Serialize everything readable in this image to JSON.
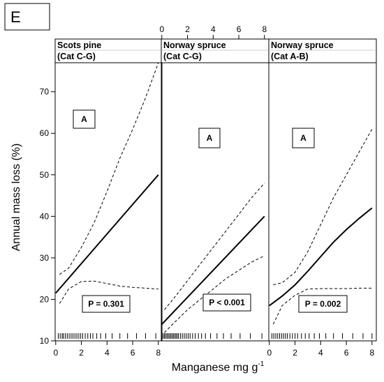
{
  "panel_letter": "E",
  "chart_data": {
    "type": "line",
    "layout": "three panels side by side sharing the y axis",
    "xlabel": "Manganese mg g",
    "xlabel_superscript": "-1",
    "ylabel": "Annual mass loss (%)",
    "xlim": [
      0,
      8
    ],
    "ylim": [
      10,
      77
    ],
    "xticks": [
      0,
      2,
      4,
      6,
      8
    ],
    "yticks": [
      10,
      20,
      30,
      40,
      50,
      60,
      70
    ],
    "grid": false,
    "bottom_axis_ticks_panels": [
      0,
      2
    ],
    "top_axis_ticks_panels": [
      1
    ],
    "panels": [
      {
        "strip_line1": "Scots pine",
        "strip_line2": "(Cat C-G)",
        "group_label": "A",
        "p_text": "P = 0.301",
        "fit": {
          "x": [
            0,
            8
          ],
          "y": [
            21.5,
            50
          ]
        },
        "upper_ci": {
          "x": [
            0.3,
            1,
            2,
            3,
            4,
            5,
            6,
            7,
            8
          ],
          "y": [
            26,
            27.5,
            32.5,
            38.5,
            46,
            54,
            61,
            68.5,
            77
          ]
        },
        "lower_ci": {
          "x": [
            0.3,
            1,
            2,
            3,
            4,
            5,
            6,
            7,
            8
          ],
          "y": [
            19,
            22.5,
            24.3,
            24.4,
            23.8,
            23.2,
            22.9,
            22.7,
            22.5
          ]
        },
        "rug": [
          0.2,
          0.35,
          0.5,
          0.6,
          0.75,
          0.9,
          1.05,
          1.2,
          1.35,
          1.5,
          1.65,
          1.8,
          1.95,
          2.1,
          2.3,
          2.5,
          2.7,
          2.9,
          3.2,
          3.5,
          3.9,
          4.4,
          5.0,
          5.6,
          6.3,
          7.0,
          7.8
        ]
      },
      {
        "strip_line1": "Norway spruce",
        "strip_line2": "(Cat C-G)",
        "group_label": "A",
        "p_text": "P < 0.001",
        "fit": {
          "x": [
            0,
            8
          ],
          "y": [
            14,
            40
          ]
        },
        "upper_ci": {
          "x": [
            0.2,
            1,
            2,
            3,
            4,
            5,
            6,
            7,
            8
          ],
          "y": [
            17.5,
            20.5,
            24.5,
            28.5,
            32.5,
            36.5,
            40.5,
            44.5,
            48
          ]
        },
        "lower_ci": {
          "x": [
            0.2,
            1,
            2,
            3,
            4,
            5,
            6,
            7,
            8
          ],
          "y": [
            12,
            14.5,
            17.5,
            20,
            22.5,
            25,
            27,
            29,
            30.5
          ]
        },
        "rug": [
          0.1,
          0.2,
          0.3,
          0.4,
          0.5,
          0.6,
          0.7,
          0.8,
          0.9,
          1.0,
          1.1,
          1.2,
          1.3,
          1.45,
          1.6,
          1.75,
          1.9,
          2.05,
          2.2,
          2.4,
          2.6,
          2.85,
          3.1,
          3.4,
          3.8,
          4.3,
          4.8,
          5.4,
          6.1,
          6.9,
          7.8
        ]
      },
      {
        "strip_line1": "Norway spruce",
        "strip_line2": "(Cat A-B)",
        "group_label": "A",
        "p_text": "P =  0.002",
        "fit": {
          "x": [
            0,
            1,
            2,
            3,
            4,
            5,
            6,
            7,
            8
          ],
          "y": [
            18.5,
            20.8,
            23.5,
            26.8,
            30.3,
            33.8,
            36.8,
            39.5,
            42
          ]
        },
        "upper_ci": {
          "x": [
            0.3,
            1,
            2,
            3,
            4,
            5,
            6,
            7,
            8
          ],
          "y": [
            23.5,
            24,
            26.5,
            31.5,
            38,
            44.5,
            50,
            55.5,
            61
          ]
        },
        "lower_ci": {
          "x": [
            0.3,
            1,
            2,
            3,
            4,
            5,
            6,
            7,
            8
          ],
          "y": [
            14,
            18.5,
            21,
            22.5,
            22.6,
            22.6,
            22.6,
            22.7,
            22.7
          ]
        },
        "rug": [
          0.2,
          0.35,
          0.5,
          0.65,
          0.8,
          0.95,
          1.1,
          1.25,
          1.4,
          1.6,
          1.8,
          2.0,
          2.2,
          2.5,
          2.8,
          3.1,
          3.5,
          3.9,
          4.4,
          5.0,
          5.7,
          6.5,
          7.3,
          8.0
        ]
      }
    ]
  }
}
